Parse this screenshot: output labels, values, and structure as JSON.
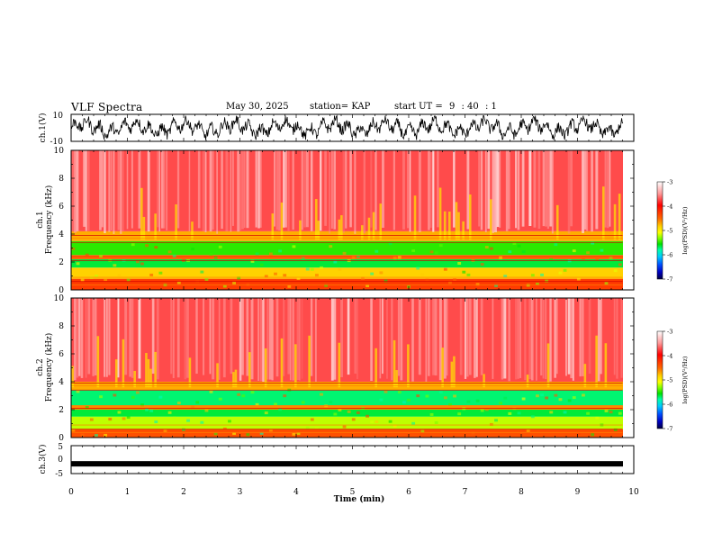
{
  "header": {
    "title": "VLF Spectra",
    "date": "May 30, 2025",
    "station": "station= KAP",
    "start_label": "start  UT  =",
    "start_h": "9",
    "start_m": ": 40",
    "start_s": ": 1"
  },
  "panels": {
    "ch1_wave": {
      "ylabel": "ch.1(V)",
      "ticks": [
        "10",
        "-10"
      ]
    },
    "ch1_spec": {
      "ylabel_line1": "ch.1",
      "ylabel_line2": "Frequency  (kHz)"
    },
    "ch2_spec": {
      "ylabel_line1": "ch.2",
      "ylabel_line2": "Frequency  (kHz)"
    },
    "ch3_wave": {
      "ylabel": "ch.3(V)",
      "ticks": [
        "5",
        "0",
        "-5"
      ]
    }
  },
  "colorbar": {
    "label": "log(PSD)(V²/Hz)",
    "ticks": [
      "-3",
      "-4",
      "-5",
      "-6",
      "-7"
    ],
    "colors": [
      "#ffffff",
      "#ff9a9a",
      "#ff0000",
      "#ff6a00",
      "#ffd200",
      "#ffff00",
      "#7fff00",
      "#00e000",
      "#00ffaa",
      "#00c8ff",
      "#0050ff",
      "#0000c0",
      "#000040"
    ]
  },
  "chart_data": {
    "type": "heatmap",
    "title": "VLF Spectra",
    "xlabel": "Time  (min)",
    "xlim": [
      0,
      10
    ],
    "x_ticks": [
      "0",
      "1",
      "2",
      "3",
      "4",
      "5",
      "6",
      "7",
      "8",
      "9",
      "10"
    ],
    "data_end_min": 9.8,
    "freq_ylim_khz": [
      0,
      10
    ],
    "freq_ticks": [
      "0",
      "2",
      "4",
      "6",
      "8",
      "10"
    ],
    "ch1_volt_ylim": [
      -10,
      10
    ],
    "ch3_volt_ylim": [
      -5,
      5
    ],
    "ch3_signal_level_v": -1.5,
    "color_range_log_psd": [
      -7,
      -3
    ],
    "ch1_spectrum_bands": [
      {
        "from_khz": 0,
        "to_khz": 0.8,
        "log_psd": -4.2
      },
      {
        "from_khz": 0.8,
        "to_khz": 1.6,
        "log_psd": -4.7
      },
      {
        "from_khz": 1.6,
        "to_khz": 2.2,
        "log_psd": -5.5
      },
      {
        "from_khz": 2.2,
        "to_khz": 2.5,
        "log_psd": -4.3
      },
      {
        "from_khz": 2.5,
        "to_khz": 3.5,
        "log_psd": -5.3
      },
      {
        "from_khz": 3.5,
        "to_khz": 4.2,
        "log_psd": -4.6
      },
      {
        "from_khz": 4.2,
        "to_khz": 10,
        "log_psd": -3.7
      }
    ],
    "ch2_spectrum_bands": [
      {
        "from_khz": 0,
        "to_khz": 0.6,
        "log_psd": -4.3
      },
      {
        "from_khz": 0.6,
        "to_khz": 1.5,
        "log_psd": -5.0
      },
      {
        "from_khz": 1.5,
        "to_khz": 2.0,
        "log_psd": -5.5
      },
      {
        "from_khz": 2.0,
        "to_khz": 2.3,
        "log_psd": -4.5
      },
      {
        "from_khz": 2.3,
        "to_khz": 3.4,
        "log_psd": -5.6
      },
      {
        "from_khz": 3.4,
        "to_khz": 4.0,
        "log_psd": -4.6
      },
      {
        "from_khz": 4.0,
        "to_khz": 10,
        "log_psd": -3.7
      }
    ]
  }
}
